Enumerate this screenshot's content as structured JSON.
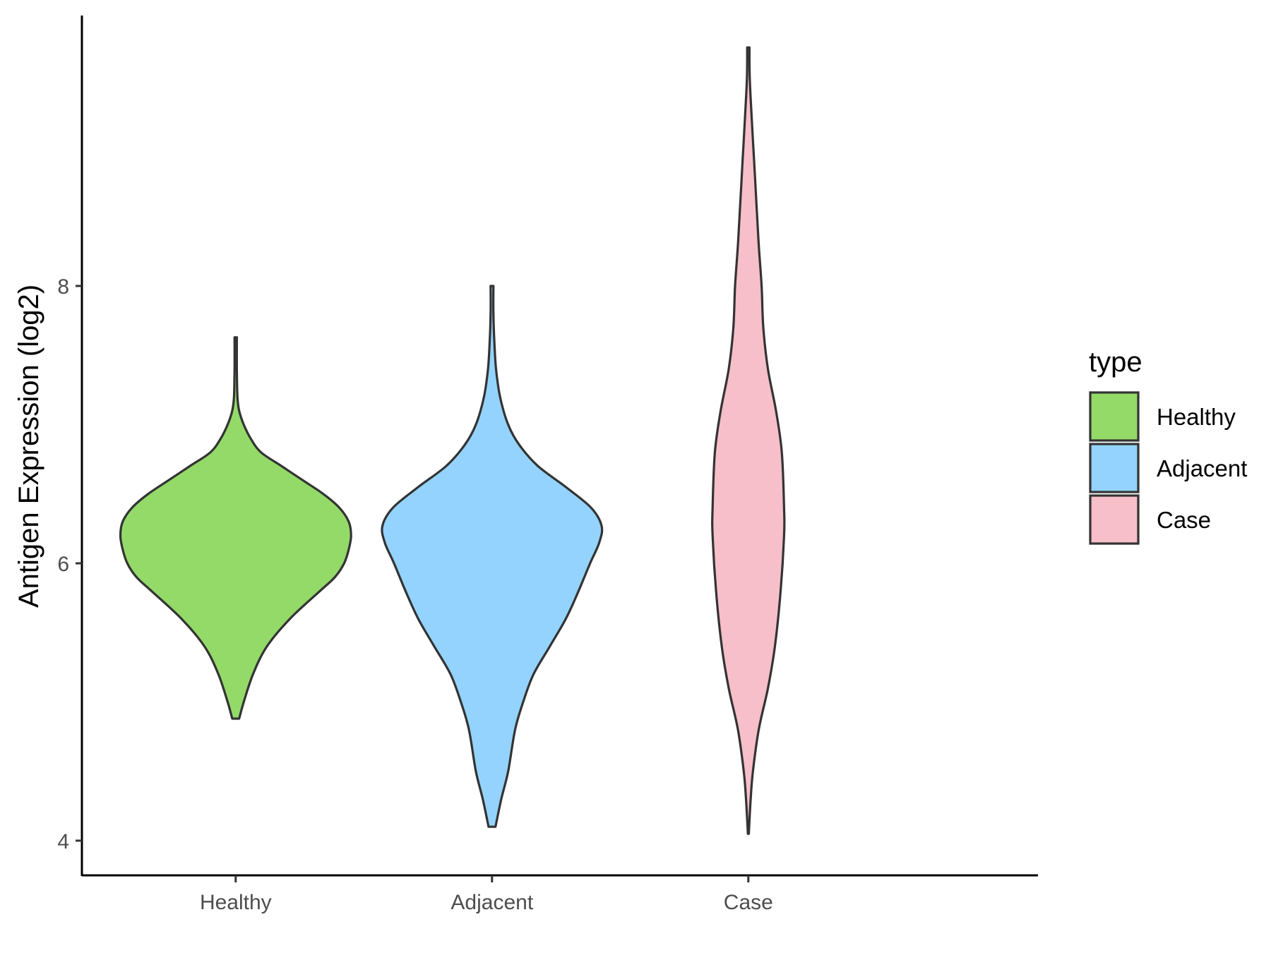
{
  "chart_data": {
    "type": "violin",
    "title": "",
    "xlabel": "",
    "ylabel": "Antigen Expression (log2)",
    "ylim": [
      3.75,
      9.95
    ],
    "yticks": [
      4,
      6,
      8
    ],
    "categories": [
      "Healthy",
      "Adjacent",
      "Case"
    ],
    "grid": false,
    "legend": {
      "title": "type",
      "placement": "right",
      "entries": [
        "Healthy",
        "Adjacent",
        "Case"
      ]
    },
    "colors": {
      "Healthy": "#93da69",
      "Adjacent": "#93d3fd",
      "Case": "#f6bfca",
      "outline": "#333333"
    },
    "series": [
      {
        "category": "Healthy",
        "min": 4.88,
        "max": 7.63,
        "profile": [
          {
            "y": 4.88,
            "w": 0.03
          },
          {
            "y": 5.0,
            "w": 0.07
          },
          {
            "y": 5.2,
            "w": 0.15
          },
          {
            "y": 5.4,
            "w": 0.27
          },
          {
            "y": 5.6,
            "w": 0.47
          },
          {
            "y": 5.8,
            "w": 0.73
          },
          {
            "y": 5.9,
            "w": 0.86
          },
          {
            "y": 6.0,
            "w": 0.94
          },
          {
            "y": 6.1,
            "w": 0.98
          },
          {
            "y": 6.2,
            "w": 1.0
          },
          {
            "y": 6.3,
            "w": 0.98
          },
          {
            "y": 6.4,
            "w": 0.9
          },
          {
            "y": 6.5,
            "w": 0.76
          },
          {
            "y": 6.6,
            "w": 0.58
          },
          {
            "y": 6.7,
            "w": 0.4
          },
          {
            "y": 6.8,
            "w": 0.22
          },
          {
            "y": 6.9,
            "w": 0.13
          },
          {
            "y": 7.0,
            "w": 0.07
          },
          {
            "y": 7.1,
            "w": 0.03
          },
          {
            "y": 7.2,
            "w": 0.015
          },
          {
            "y": 7.4,
            "w": 0.01
          },
          {
            "y": 7.63,
            "w": 0.01
          }
        ]
      },
      {
        "category": "Adjacent",
        "min": 4.1,
        "max": 8.0,
        "profile": [
          {
            "y": 4.1,
            "w": 0.03
          },
          {
            "y": 4.3,
            "w": 0.08
          },
          {
            "y": 4.5,
            "w": 0.14
          },
          {
            "y": 4.8,
            "w": 0.2
          },
          {
            "y": 5.0,
            "w": 0.27
          },
          {
            "y": 5.2,
            "w": 0.36
          },
          {
            "y": 5.4,
            "w": 0.5
          },
          {
            "y": 5.6,
            "w": 0.64
          },
          {
            "y": 5.8,
            "w": 0.75
          },
          {
            "y": 6.0,
            "w": 0.85
          },
          {
            "y": 6.15,
            "w": 0.93
          },
          {
            "y": 6.27,
            "w": 0.95
          },
          {
            "y": 6.4,
            "w": 0.86
          },
          {
            "y": 6.55,
            "w": 0.64
          },
          {
            "y": 6.7,
            "w": 0.4
          },
          {
            "y": 6.85,
            "w": 0.24
          },
          {
            "y": 7.0,
            "w": 0.14
          },
          {
            "y": 7.2,
            "w": 0.07
          },
          {
            "y": 7.4,
            "w": 0.035
          },
          {
            "y": 7.6,
            "w": 0.02
          },
          {
            "y": 7.8,
            "w": 0.012
          },
          {
            "y": 8.0,
            "w": 0.012
          }
        ]
      },
      {
        "category": "Case",
        "min": 4.05,
        "max": 9.72,
        "profile": [
          {
            "y": 4.05,
            "w": 0.004
          },
          {
            "y": 4.3,
            "w": 0.02
          },
          {
            "y": 4.5,
            "w": 0.04
          },
          {
            "y": 4.8,
            "w": 0.09
          },
          {
            "y": 5.1,
            "w": 0.17
          },
          {
            "y": 5.4,
            "w": 0.23
          },
          {
            "y": 5.8,
            "w": 0.28
          },
          {
            "y": 6.2,
            "w": 0.31
          },
          {
            "y": 6.4,
            "w": 0.31
          },
          {
            "y": 6.8,
            "w": 0.29
          },
          {
            "y": 7.1,
            "w": 0.24
          },
          {
            "y": 7.4,
            "w": 0.17
          },
          {
            "y": 7.7,
            "w": 0.13
          },
          {
            "y": 8.0,
            "w": 0.115
          },
          {
            "y": 8.3,
            "w": 0.09
          },
          {
            "y": 8.6,
            "w": 0.07
          },
          {
            "y": 8.9,
            "w": 0.05
          },
          {
            "y": 9.2,
            "w": 0.03
          },
          {
            "y": 9.5,
            "w": 0.012
          },
          {
            "y": 9.72,
            "w": 0.01
          }
        ]
      }
    ]
  }
}
